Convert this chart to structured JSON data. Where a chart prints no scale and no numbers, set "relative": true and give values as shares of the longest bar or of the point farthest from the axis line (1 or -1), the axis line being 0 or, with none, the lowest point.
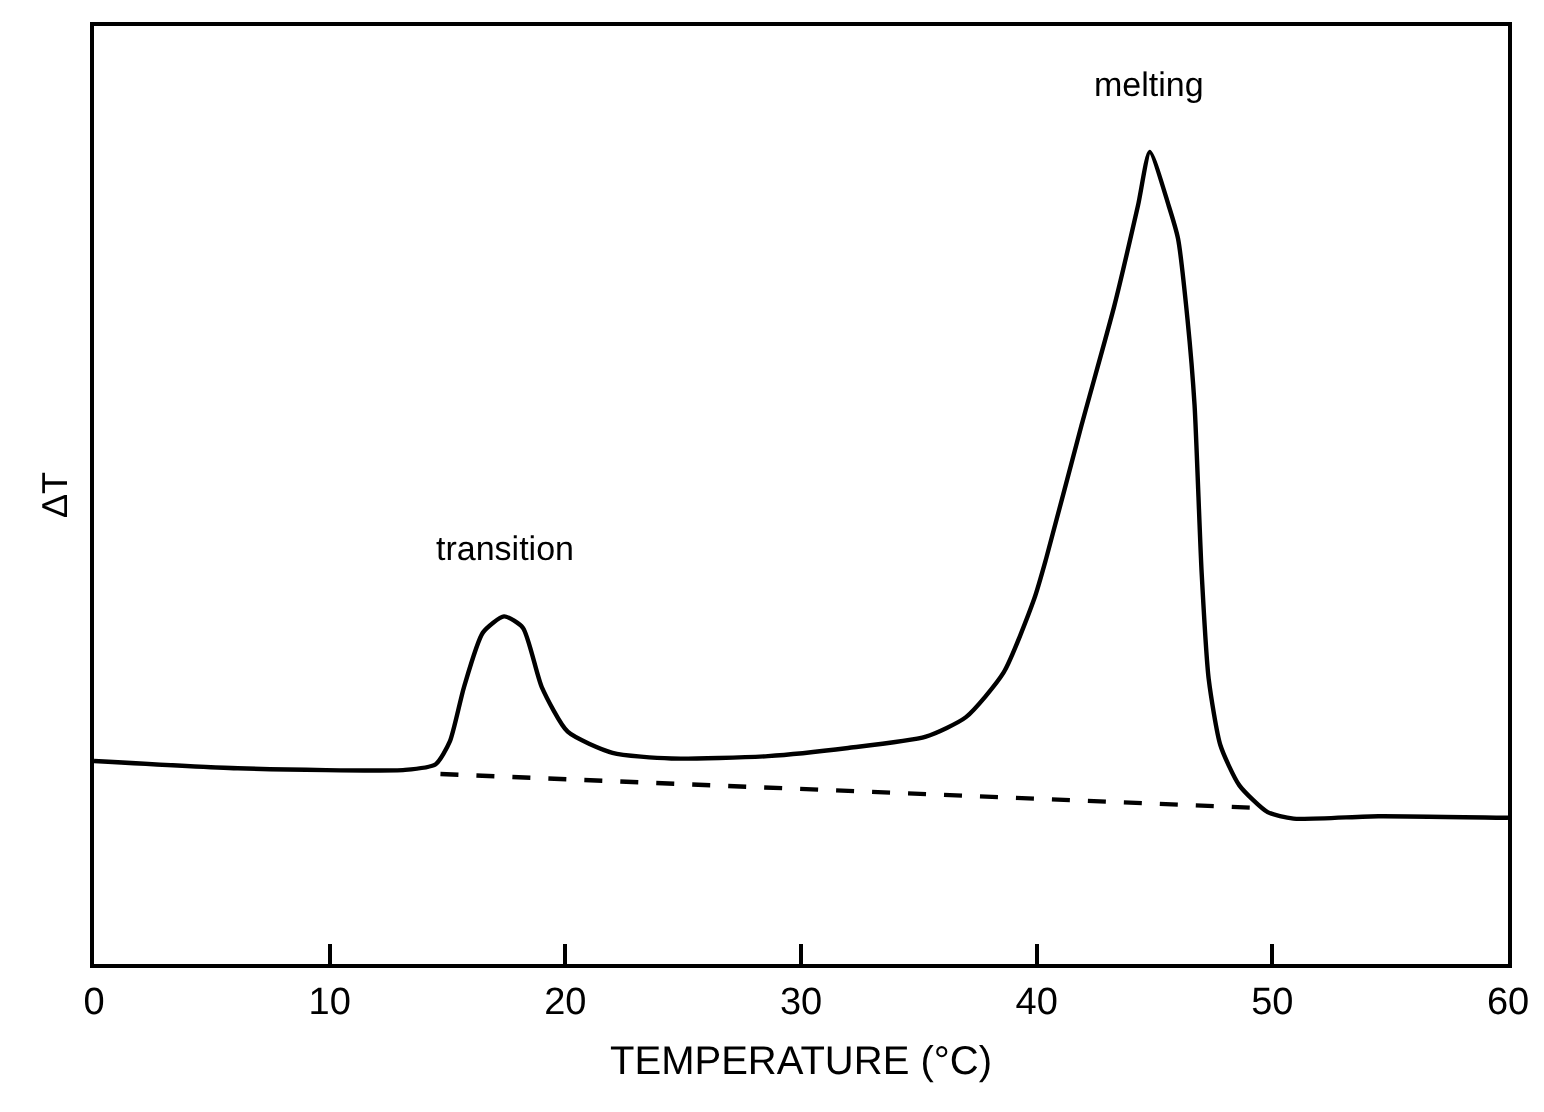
{
  "chart_data": {
    "type": "line",
    "relative": true,
    "xlabel": "TEMPERATURE (°C)",
    "ylabel": "ΔT",
    "xlim": [
      0,
      60
    ],
    "xticks": [
      0,
      10,
      20,
      30,
      40,
      50,
      60
    ],
    "annotations": [
      {
        "text": "transition",
        "x": 17.4,
        "y": 0.428
      },
      {
        "text": "melting",
        "x": 44.8,
        "y": 1.0
      }
    ],
    "series": [
      {
        "color": "#000000",
        "line_style": "solid",
        "x": [
          0,
          6.1,
          13.2,
          14.5,
          15.1,
          15.7,
          16.5,
          17.4,
          18.2,
          19.0,
          20.1,
          22.0,
          24.5,
          28.6,
          32.0,
          35.3,
          37.0,
          38.6,
          39.9,
          40.4,
          41.9,
          43.3,
          44.3,
          44.8,
          45.6,
          46.0,
          46.4,
          46.7,
          47.0,
          47.3,
          47.8,
          48.6,
          49.8,
          50.9,
          54.5,
          60
        ],
        "values": [
          0.25,
          0.241,
          0.239,
          0.246,
          0.274,
          0.341,
          0.408,
          0.428,
          0.414,
          0.341,
          0.286,
          0.26,
          0.253,
          0.256,
          0.266,
          0.28,
          0.304,
          0.359,
          0.45,
          0.499,
          0.663,
          0.811,
          0.934,
          1.0,
          0.934,
          0.893,
          0.794,
          0.688,
          0.482,
          0.351,
          0.269,
          0.22,
          0.187,
          0.179,
          0.182,
          0.18
        ]
      },
      {
        "color": "#000000",
        "line_style": "dashed",
        "x": [
          14.7,
          49.5
        ],
        "values": [
          0.234,
          0.192
        ]
      }
    ]
  }
}
